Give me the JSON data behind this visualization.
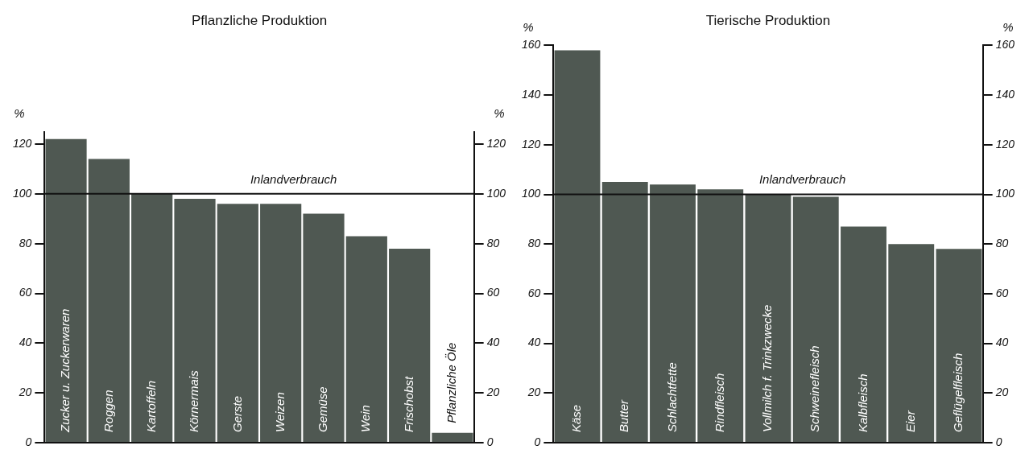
{
  "chart_data": [
    {
      "type": "bar",
      "title": "Pflanzliche Produktion",
      "ylabel": "%",
      "y2label": "%",
      "categories": [
        "Zucker u. Zuckerwaren",
        "Roggen",
        "Kartoffeln",
        "Körnermais",
        "Gerste",
        "Weizen",
        "Gemüse",
        "Wein",
        "Frischobst",
        "Pflanzliche Öle"
      ],
      "values": [
        122,
        114,
        100,
        98,
        96,
        96,
        92,
        83,
        78,
        4
      ],
      "color": "#4f5852",
      "ylim": [
        0,
        125
      ],
      "yticks": [
        0,
        20,
        40,
        60,
        80,
        100,
        120
      ],
      "y2lim": [
        0,
        125
      ],
      "y2ticks": [
        0,
        20,
        40,
        60,
        80,
        100,
        120
      ],
      "ref_lines": [
        {
          "axis": "y",
          "value": 100,
          "label": "Inlandverbrauch",
          "color": "#111111",
          "line_style": "solid"
        }
      ],
      "legend": false
    },
    {
      "type": "bar",
      "title": "Tierische Produktion",
      "ylabel": "%",
      "y2label": "%",
      "categories": [
        "Käse",
        "Butter",
        "Schlachtfette",
        "Rindfleisch",
        "Vollmilch f. Trinkzwecke",
        "Schweinefleisch",
        "Kalbfleisch",
        "Eier",
        "Geflügelfleisch"
      ],
      "values": [
        158,
        105,
        104,
        102,
        100,
        99,
        87,
        80,
        78
      ],
      "color": "#4f5852",
      "ylim": [
        0,
        160
      ],
      "yticks": [
        0,
        20,
        40,
        60,
        80,
        100,
        120,
        140,
        160
      ],
      "y2lim": [
        0,
        160
      ],
      "y2ticks": [
        0,
        20,
        40,
        60,
        80,
        100,
        120,
        140,
        160
      ],
      "ref_lines": [
        {
          "axis": "y",
          "value": 100,
          "label": "Inlandverbrauch",
          "color": "#111111",
          "line_style": "solid"
        }
      ],
      "legend": false
    }
  ]
}
